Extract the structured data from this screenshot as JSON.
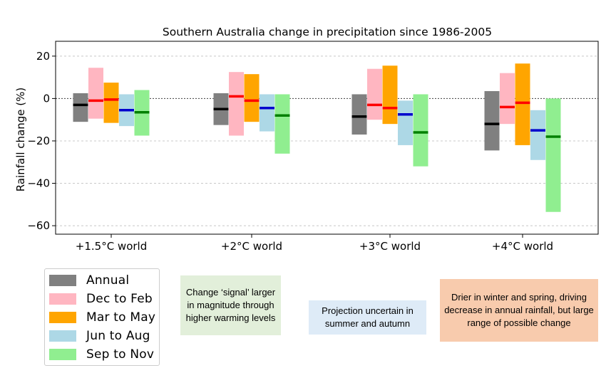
{
  "chart_data": {
    "type": "bar",
    "title": "Southern Australia change in precipitation since 1986-2005",
    "ylabel": "Rainfall change (%)",
    "xlabel": "",
    "categories": [
      "+1.5°C world",
      "+2°C world",
      "+3°C world",
      "+4°C world"
    ],
    "ylim": [
      -64,
      27
    ],
    "yticks": [
      20,
      0,
      -20,
      -40,
      -60
    ],
    "ytick_labels": [
      "20",
      "0",
      "−20",
      "−40",
      "−60"
    ],
    "grid": true,
    "zero_line": "dotted",
    "legend_placement": "below-left",
    "series": [
      {
        "name": "Annual",
        "color": "#808080",
        "median_color": "#000000",
        "low": [
          -11,
          -12.5,
          -17,
          -24.5
        ],
        "high": [
          2.5,
          2.5,
          2,
          3.5
        ],
        "median": [
          -3,
          -5,
          -8.5,
          -12
        ]
      },
      {
        "name": "Dec to Feb",
        "color": "#ffb6c1",
        "median_color": "#ff0000",
        "low": [
          -9.5,
          -17.5,
          -10,
          -12
        ],
        "high": [
          14.5,
          12.5,
          14,
          12
        ],
        "median": [
          -1,
          1,
          -3,
          -4
        ]
      },
      {
        "name": "Mar to May",
        "color": "#ffa500",
        "median_color": "#ff0000",
        "low": [
          -11.5,
          -11,
          -12,
          -22
        ],
        "high": [
          7.5,
          11.5,
          15.5,
          16.5
        ],
        "median": [
          -0.5,
          -1,
          -4.5,
          -2
        ]
      },
      {
        "name": "Jun to Aug",
        "color": "#add8e6",
        "median_color": "#0000cd",
        "low": [
          -13,
          -15.5,
          -22,
          -29
        ],
        "high": [
          2,
          2,
          -1,
          -5.5
        ],
        "median": [
          -5.5,
          -4.5,
          -7.5,
          -15
        ]
      },
      {
        "name": "Sep to Nov",
        "color": "#90ee90",
        "median_color": "#008000",
        "low": [
          -17.5,
          -26,
          -32,
          -53.5
        ],
        "high": [
          4,
          2,
          2,
          0
        ],
        "median": [
          -6.5,
          -8,
          -16,
          -18
        ]
      }
    ]
  },
  "notes": [
    {
      "text": "Change ‘signal’ larger in magnitude through higher warming levels",
      "bg": "#e2efda"
    },
    {
      "text": "Projection uncertain in summer and autumn",
      "bg": "#deebf7"
    },
    {
      "text": "Drier in winter and spring, driving decrease in annual rainfall, but large range of possible change",
      "bg": "#f8cbad"
    }
  ]
}
